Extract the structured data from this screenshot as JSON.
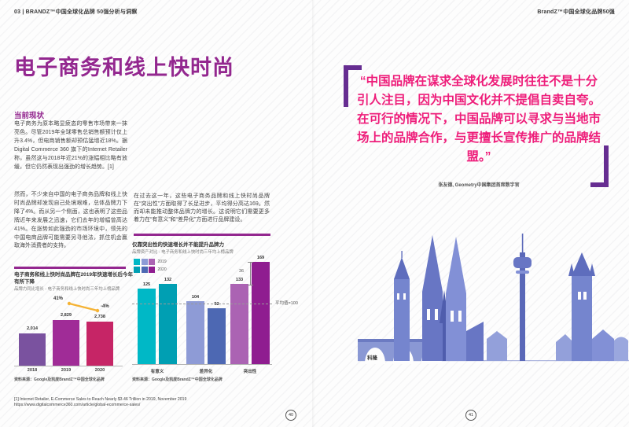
{
  "page": {
    "header_left": "03 | BRANDZ™中国全球化品牌 50强分析与洞察",
    "header_right": "BrandZ™中国全球化品牌50强",
    "page_number_left": "40",
    "page_number_right": "41"
  },
  "colors": {
    "accent_purple": "#93278F",
    "quote_pink": "#EE1D7A",
    "quote_bracket_purple": "#662D91",
    "annotation_gold": "#F5B335"
  },
  "article": {
    "title": "电子商务和线上快时尚",
    "section_heading": "当前现状",
    "col1_para1": "电子商务为原本略显疲态的零售市场带来一抹亮色。尽管2019年全球零售总销售额预计仅上升3.4%，但电商销售额却预估猛增近18%。据Digital Commerce 360 旗下的Internet Retailer 称，虽然这与2018年近21%的涨幅相比略有放缓，但它仍然表现出强劲的增长趋势。[1]",
    "col1_para2": "然而，不少来自中国的电子商务品牌和线上快时尚品牌却发现自己处境艰难，总体品牌力下降了4%。而从另一个侧面，这也表明了这些品牌近年来发展之迅速，它们去年的增幅曾高达41%。在涨势如此强劲的市场环境中，领先的中国电商品牌可能需要另寻他法，抓住机会赢取海外消费者的支持。",
    "col2_para1": "在过去这一年，这些电子商务品牌和线上快时尚品牌在“突出性”方面取得了长足进步，平均得分高达169。然而却未能推动整体品牌力的增长。这说明它们需要更多着力在“有意义”和“差异化”方面进行品牌建设。"
  },
  "chart_data": [
    {
      "type": "bar",
      "title": "电子商务和线上快时尚品牌在2019年快速增长后今年有所下降",
      "subtitle": "品牌力同比增长 - 电子商务和线上快时尚三年均上榜品牌",
      "categories": [
        "2018",
        "2019",
        "2020"
      ],
      "values": [
        2014,
        2829,
        2738
      ],
      "value_labels": [
        "2,014",
        "2,829",
        "2,738"
      ],
      "bar_colors": [
        "#7A529F",
        "#A02C97",
        "#C62566"
      ],
      "annotations": [
        {
          "label": "41%"
        },
        {
          "label": "-4%"
        }
      ],
      "annotation_line_color": "#F5B335",
      "ylim": [
        0,
        2900
      ],
      "source": "资料来源：Google及凯度BrandZ™中国全球化品牌"
    },
    {
      "type": "bar",
      "title": "仅靠突出性的快速增长并不能提升品牌力",
      "subtitle": "品牌资产对比 - 电子商务和线上快时尚三年均上榜品牌",
      "categories": [
        "有意义",
        "差异化",
        "突出性"
      ],
      "series": [
        {
          "name": "2019",
          "values": [
            125,
            104,
            133
          ],
          "colors": [
            "#00B8C6",
            "#8E9BD6",
            "#AB63B3"
          ]
        },
        {
          "name": "2020",
          "values": [
            132,
            92,
            169
          ],
          "colors": [
            "#009FB3",
            "#4D68B3",
            "#8F1D90"
          ]
        }
      ],
      "average_line": {
        "value": 100,
        "label": "平均值=100"
      },
      "difference_annotation": "36",
      "ylim": [
        0,
        175
      ],
      "source": "资料来源：Google及凯度BrandZ™中国全球化品牌"
    }
  ],
  "quote": {
    "text": "“中国品牌在谋求全球化发展时往往不是十分引人注目，因为中国文化并不提倡自卖自夸。在可行的情况下，中国品牌可以寻求与当地市场上的品牌合作，与更擅长宣传推广的品牌结盟。”",
    "attribution": "张友德, Geometry中国集团首席数字官"
  },
  "illustration": {
    "label": "科隆"
  },
  "footnote": {
    "line1": "[1] Internet Retailer, E-Commerce Sales to Reach Nearly $3.46 Trillion in 2019, November 2019",
    "line2": "https://www.digitalcommerce360.com/article/global-ecommerce-sales/"
  }
}
